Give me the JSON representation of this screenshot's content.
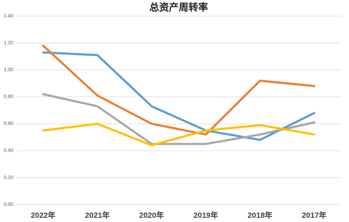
{
  "chart_data": {
    "type": "line",
    "title": "总资产周转率",
    "categories": [
      "2022年",
      "2021年",
      "2020年",
      "2019年",
      "2018年",
      "2017年"
    ],
    "series": [
      {
        "color": "#5b9bd5",
        "values": [
          1.13,
          1.11,
          0.73,
          0.55,
          0.48,
          0.68
        ]
      },
      {
        "color": "#ed7d31",
        "values": [
          1.18,
          0.81,
          0.6,
          0.52,
          0.92,
          0.88
        ]
      },
      {
        "color": "#a5a5a5",
        "values": [
          0.82,
          0.73,
          0.45,
          0.45,
          0.52,
          0.61
        ]
      },
      {
        "color": "#ffc000",
        "values": [
          0.55,
          0.6,
          0.44,
          0.55,
          0.59,
          0.52
        ]
      }
    ],
    "ylim": [
      0,
      1.4
    ],
    "yticks": [
      {
        "value": 0,
        "label": "0.00"
      },
      {
        "value": 0.2,
        "label": "0.20"
      },
      {
        "value": 0.4,
        "label": "0.40"
      },
      {
        "value": 0.6,
        "label": "0.60"
      },
      {
        "value": 0.8,
        "label": "0.80"
      },
      {
        "value": 1.0,
        "label": "1.00"
      },
      {
        "value": 1.2,
        "label": "1.20"
      },
      {
        "value": 1.4,
        "label": "1.40"
      }
    ],
    "grid": true
  }
}
